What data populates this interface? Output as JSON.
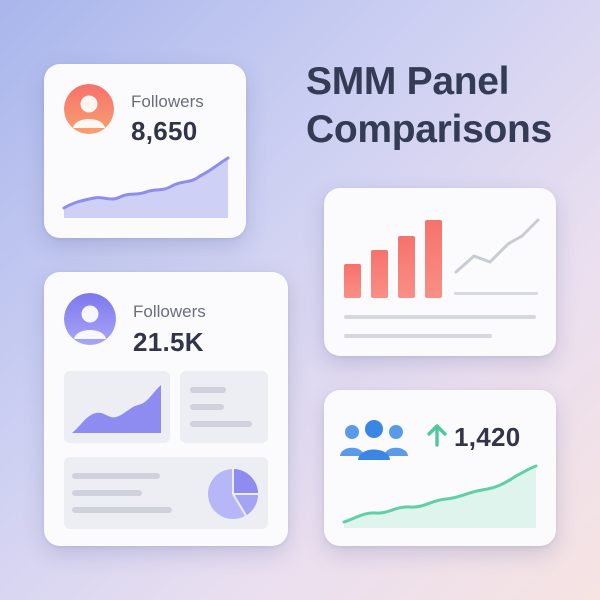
{
  "title": {
    "line1": "SMM Panel",
    "line2": "Comparisons"
  },
  "colors": {
    "accent_purple": "#8e8cf0",
    "accent_red": "#f2706e",
    "accent_green": "#5fcfa6",
    "accent_blue": "#3b86e4",
    "text_dark": "#30354a"
  },
  "card1": {
    "label": "Followers",
    "value": "8,650",
    "avatar_icon": "user-avatar-icon"
  },
  "card2": {
    "label": "Followers",
    "value": "21.5K",
    "avatar_icon": "user-avatar-icon"
  },
  "card4": {
    "value": "1,420",
    "group_icon": "users-group-icon",
    "trend_icon": "arrow-up-icon"
  }
}
